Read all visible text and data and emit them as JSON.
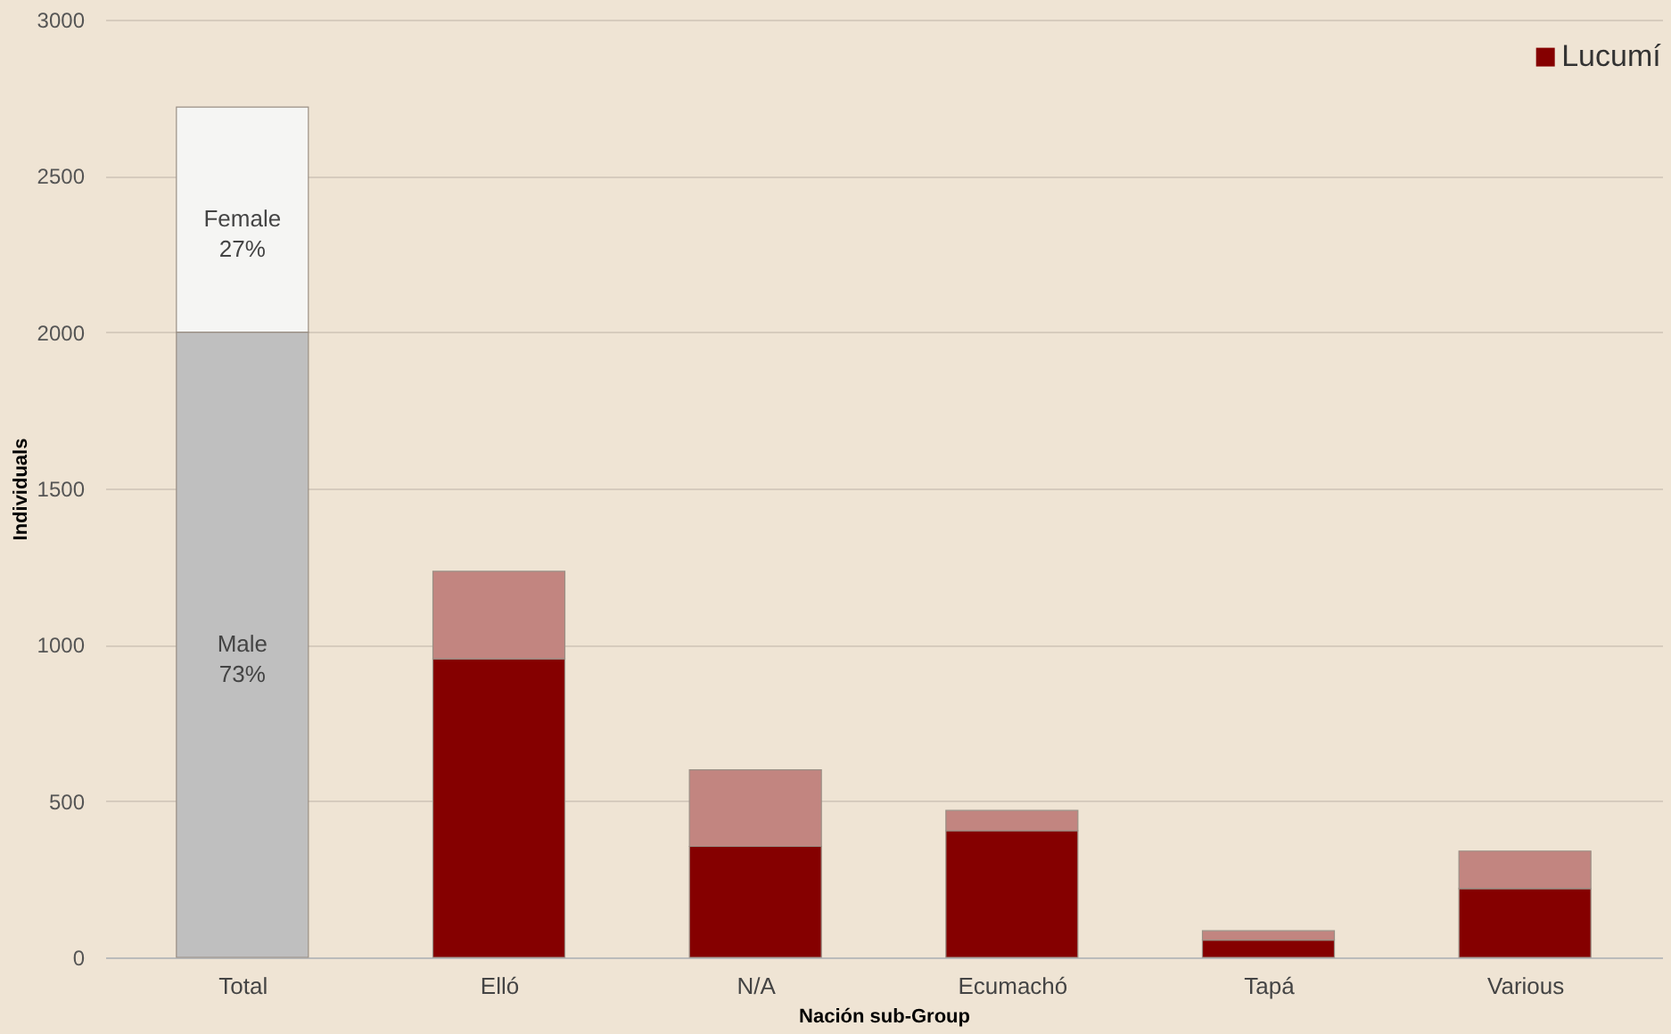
{
  "chart_data": {
    "type": "bar",
    "stacked": true,
    "xlabel": "Nación sub-Group",
    "ylabel": "Individuals",
    "categories": [
      "Total",
      "Elló",
      "N/A",
      "Ecumachó",
      "Tapá",
      "Various"
    ],
    "series": [
      {
        "color": "#bfbfbf",
        "values": [
          2000,
          null,
          null,
          null,
          null,
          null
        ],
        "value_labels": [
          "Male 73%",
          null,
          null,
          null,
          null,
          null
        ]
      },
      {
        "color": "#f5f5f3",
        "values": [
          720,
          null,
          null,
          null,
          null,
          null
        ],
        "value_labels": [
          "Female 27%",
          null,
          null,
          null,
          null,
          null
        ]
      },
      {
        "name": "Lucumí",
        "color": "#850000",
        "values": [
          null,
          955,
          355,
          405,
          55,
          220
        ]
      },
      {
        "color": "#c28580",
        "values": [
          null,
          280,
          245,
          65,
          30,
          120
        ]
      }
    ],
    "ylim": [
      0,
      3000
    ],
    "yticks": [
      0,
      500,
      1000,
      1500,
      2000,
      2500,
      3000
    ],
    "grid": "y",
    "legend": "top right"
  }
}
